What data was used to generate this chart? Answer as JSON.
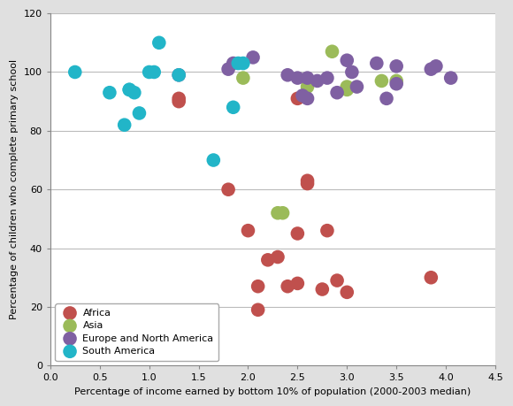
{
  "title": "",
  "xlabel": "Percentage of income earned by bottom 10% of population (2000-2003 median)",
  "ylabel": "Percentage of children who complete primary school",
  "xlim": [
    0,
    4.5
  ],
  "ylim": [
    0,
    120
  ],
  "xticks": [
    0,
    0.5,
    1.0,
    1.5,
    2.0,
    2.5,
    3.0,
    3.5,
    4.0,
    4.5
  ],
  "yticks": [
    0,
    20,
    40,
    60,
    80,
    100,
    120
  ],
  "africa": {
    "color": "#c0504d",
    "label": "Africa",
    "x": [
      1.3,
      1.3,
      1.8,
      2.0,
      2.1,
      2.1,
      2.2,
      2.3,
      2.4,
      2.5,
      2.5,
      2.5,
      2.6,
      2.6,
      2.75,
      2.8,
      2.9,
      3.0,
      3.85
    ],
    "y": [
      91,
      90,
      60,
      46,
      19,
      27,
      36,
      37,
      27,
      28,
      45,
      91,
      62,
      63,
      26,
      46,
      29,
      25,
      30
    ]
  },
  "asia": {
    "color": "#9bbb59",
    "label": "Asia",
    "x": [
      1.95,
      2.3,
      2.35,
      2.6,
      2.85,
      3.0,
      3.0,
      3.35,
      3.5
    ],
    "y": [
      98,
      52,
      52,
      95,
      107,
      95,
      94,
      97,
      97
    ]
  },
  "europe": {
    "color": "#7f60a2",
    "label": "Europe and North America",
    "x": [
      1.3,
      1.8,
      1.85,
      2.05,
      2.4,
      2.5,
      2.55,
      2.6,
      2.6,
      2.7,
      2.8,
      2.9,
      3.0,
      3.05,
      3.1,
      3.3,
      3.4,
      3.5,
      3.5,
      3.85,
      3.9,
      4.05
    ],
    "y": [
      99,
      101,
      103,
      105,
      99,
      98,
      92,
      98,
      91,
      97,
      98,
      93,
      104,
      100,
      95,
      103,
      91,
      102,
      96,
      101,
      102,
      98
    ]
  },
  "southamerica": {
    "color": "#22b5c8",
    "label": "South America",
    "x": [
      0.25,
      0.6,
      0.75,
      0.8,
      0.8,
      0.85,
      0.9,
      1.0,
      1.05,
      1.1,
      1.3,
      1.65,
      1.85,
      1.9,
      1.95
    ],
    "y": [
      100,
      93,
      82,
      94,
      94,
      93,
      86,
      100,
      100,
      110,
      99,
      70,
      88,
      103,
      103
    ]
  },
  "outer_bg": "#e0e0e0",
  "plot_bg_color": "#ffffff",
  "grid_color": "#bbbbbb",
  "marker_size": 6,
  "xlabel_fontsize": 8,
  "ylabel_fontsize": 8,
  "tick_fontsize": 8,
  "legend_fontsize": 8
}
